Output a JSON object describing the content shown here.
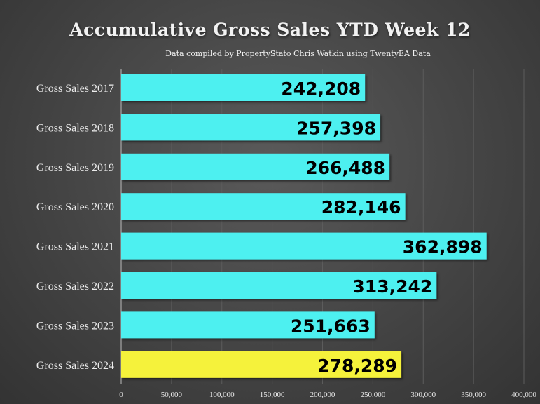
{
  "chart_data": {
    "type": "bar",
    "orientation": "horizontal",
    "title": "Accumulative Gross Sales YTD Week 12",
    "subtitle": "Data compiled by PropertyStato Chris Watkin using TwentyEA Data",
    "categories": [
      "Gross Sales 2017",
      "Gross Sales 2018",
      "Gross Sales 2019",
      "Gross Sales 2020",
      "Gross Sales 2021",
      "Gross Sales 2022",
      "Gross Sales 2023",
      "Gross Sales 2024"
    ],
    "values": [
      242208,
      257398,
      266488,
      282146,
      362898,
      313242,
      251663,
      278289
    ],
    "data_labels": [
      "242,208",
      "257,398",
      "266,488",
      "282,146",
      "362,898",
      "313,242",
      "251,663",
      "278,289"
    ],
    "colors": [
      "#4ef0f0",
      "#4ef0f0",
      "#4ef0f0",
      "#4ef0f0",
      "#4ef0f0",
      "#4ef0f0",
      "#4ef0f0",
      "#f5f23a"
    ],
    "xlim": [
      0,
      400000
    ],
    "x_ticks": [
      0,
      50000,
      100000,
      150000,
      200000,
      250000,
      300000,
      350000,
      400000
    ],
    "x_tick_labels": [
      "0",
      "50,000",
      "100,000",
      "150,000",
      "200,000",
      "250,000",
      "300,000",
      "350,000",
      "400,000"
    ],
    "grid": true,
    "xlabel": "",
    "ylabel": ""
  }
}
